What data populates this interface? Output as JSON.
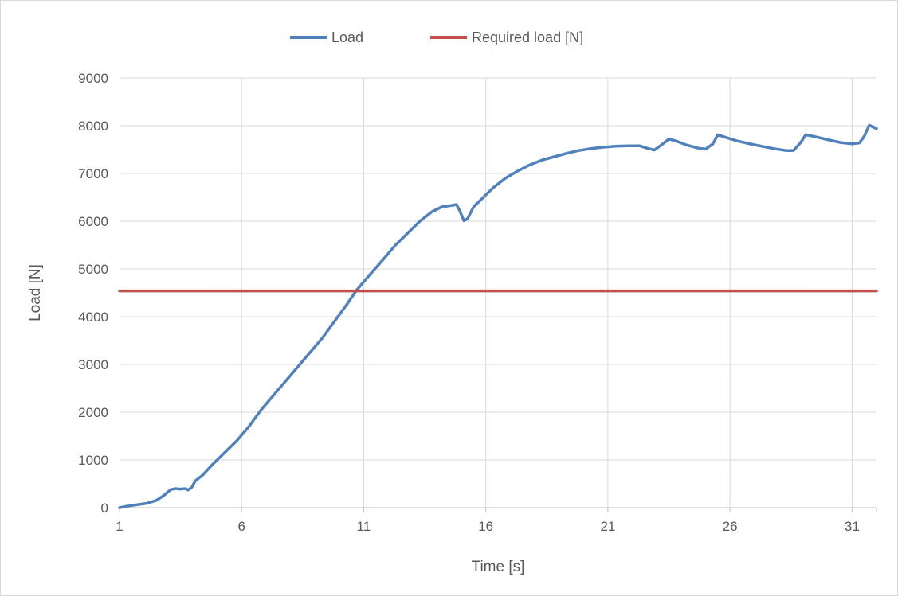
{
  "chart_data": {
    "type": "line",
    "title": "",
    "xlabel": "Time [s]",
    "ylabel": "Load [N]",
    "xlim": [
      1,
      32
    ],
    "ylim": [
      0,
      9000
    ],
    "x_ticks": [
      "1",
      "6",
      "11",
      "16",
      "21",
      "26",
      "31"
    ],
    "y_ticks": [
      "0",
      "1000",
      "2000",
      "3000",
      "4000",
      "5000",
      "6000",
      "7000",
      "8000",
      "9000"
    ],
    "grid": true,
    "legend_position": "top",
    "series": [
      {
        "name": "Load",
        "color": "#4f81bd",
        "points": [
          [
            1.0,
            0
          ],
          [
            1.3,
            30
          ],
          [
            1.7,
            60
          ],
          [
            2.1,
            90
          ],
          [
            2.5,
            150
          ],
          [
            2.8,
            250
          ],
          [
            3.1,
            380
          ],
          [
            3.3,
            400
          ],
          [
            3.5,
            390
          ],
          [
            3.7,
            400
          ],
          [
            3.8,
            370
          ],
          [
            3.95,
            420
          ],
          [
            4.1,
            560
          ],
          [
            4.4,
            680
          ],
          [
            4.8,
            900
          ],
          [
            5.3,
            1150
          ],
          [
            5.8,
            1400
          ],
          [
            6.3,
            1700
          ],
          [
            6.8,
            2050
          ],
          [
            7.3,
            2350
          ],
          [
            7.8,
            2650
          ],
          [
            8.3,
            2950
          ],
          [
            8.8,
            3250
          ],
          [
            9.3,
            3550
          ],
          [
            9.8,
            3900
          ],
          [
            10.3,
            4250
          ],
          [
            10.7,
            4550
          ],
          [
            11.2,
            4850
          ],
          [
            11.8,
            5200
          ],
          [
            12.3,
            5500
          ],
          [
            12.8,
            5750
          ],
          [
            13.3,
            6000
          ],
          [
            13.8,
            6200
          ],
          [
            14.2,
            6300
          ],
          [
            14.6,
            6330
          ],
          [
            14.8,
            6350
          ],
          [
            14.95,
            6200
          ],
          [
            15.1,
            6010
          ],
          [
            15.25,
            6050
          ],
          [
            15.5,
            6300
          ],
          [
            15.8,
            6450
          ],
          [
            16.3,
            6700
          ],
          [
            16.8,
            6900
          ],
          [
            17.3,
            7050
          ],
          [
            17.8,
            7180
          ],
          [
            18.3,
            7280
          ],
          [
            18.8,
            7350
          ],
          [
            19.3,
            7420
          ],
          [
            19.8,
            7480
          ],
          [
            20.3,
            7520
          ],
          [
            20.8,
            7550
          ],
          [
            21.3,
            7570
          ],
          [
            21.8,
            7580
          ],
          [
            22.3,
            7580
          ],
          [
            22.6,
            7530
          ],
          [
            22.9,
            7490
          ],
          [
            23.2,
            7600
          ],
          [
            23.5,
            7720
          ],
          [
            23.8,
            7680
          ],
          [
            24.2,
            7600
          ],
          [
            24.7,
            7530
          ],
          [
            25.0,
            7510
          ],
          [
            25.3,
            7620
          ],
          [
            25.5,
            7810
          ],
          [
            25.8,
            7760
          ],
          [
            26.3,
            7680
          ],
          [
            27.0,
            7600
          ],
          [
            27.8,
            7520
          ],
          [
            28.3,
            7480
          ],
          [
            28.6,
            7480
          ],
          [
            28.9,
            7650
          ],
          [
            29.1,
            7810
          ],
          [
            29.4,
            7780
          ],
          [
            29.9,
            7720
          ],
          [
            30.5,
            7650
          ],
          [
            31.0,
            7620
          ],
          [
            31.3,
            7640
          ],
          [
            31.5,
            7780
          ],
          [
            31.7,
            8010
          ],
          [
            32.0,
            7940
          ]
        ]
      },
      {
        "name": "Required load [N]",
        "color": "#c0504d",
        "points": [
          [
            1,
            4540
          ],
          [
            32,
            4540
          ]
        ]
      }
    ]
  }
}
